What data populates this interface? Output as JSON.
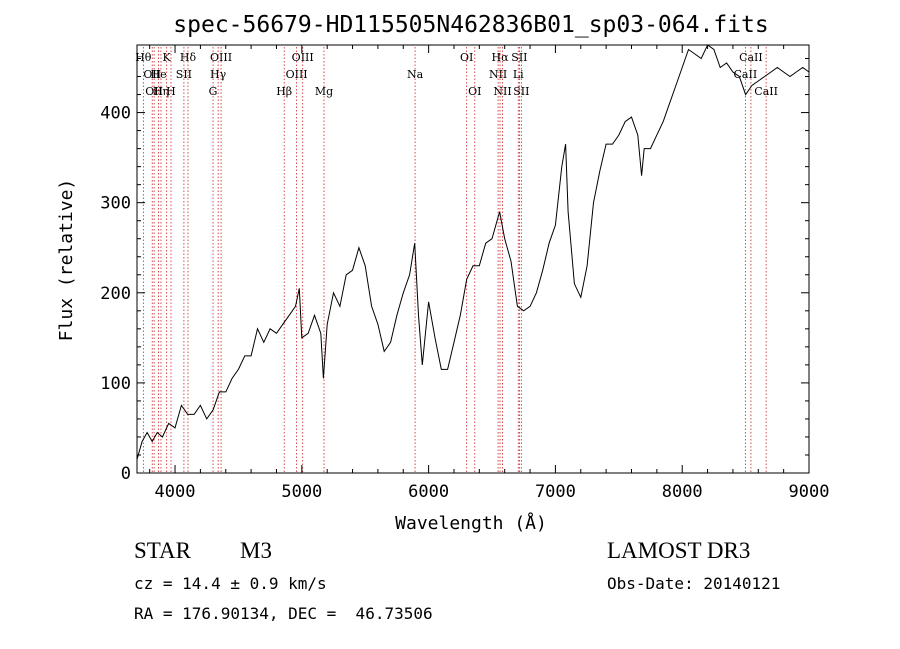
{
  "chart_data": {
    "type": "line",
    "title": "spec-56679-HD115505N462836B01_sp03-064.fits",
    "xlabel": "Wavelength (Å)",
    "ylabel": "Flux (relative)",
    "xlim": [
      3700,
      9000
    ],
    "ylim": [
      0,
      475
    ],
    "xticks": [
      4000,
      5000,
      6000,
      7000,
      8000,
      9000
    ],
    "yticks": [
      0,
      100,
      200,
      300,
      400
    ],
    "grid": false,
    "legend": "none",
    "line_color": "#000000",
    "marker_color": "#cc2222",
    "series": [
      {
        "x": [
          3700,
          3740,
          3780,
          3820,
          3860,
          3900,
          3950,
          4000,
          4050,
          4100,
          4150,
          4200,
          4250,
          4300,
          4350,
          4400,
          4450,
          4500,
          4550,
          4600,
          4650,
          4700,
          4750,
          4800,
          4850,
          4900,
          4950,
          4980,
          5000,
          5050,
          5100,
          5150,
          5170,
          5200,
          5250,
          5300,
          5350,
          5400,
          5450,
          5500,
          5550,
          5600,
          5650,
          5700,
          5750,
          5800,
          5850,
          5890,
          5920,
          5950,
          6000,
          6050,
          6100,
          6150,
          6200,
          6250,
          6300,
          6350,
          6400,
          6450,
          6500,
          6560,
          6600,
          6650,
          6700,
          6750,
          6800,
          6850,
          6900,
          6950,
          7000,
          7050,
          7080,
          7100,
          7150,
          7200,
          7250,
          7300,
          7350,
          7400,
          7450,
          7500,
          7550,
          7600,
          7650,
          7680,
          7700,
          7750,
          7800,
          7850,
          7900,
          7950,
          8000,
          8050,
          8100,
          8150,
          8200,
          8250,
          8300,
          8350,
          8400,
          8450,
          8500,
          8550,
          8600,
          8650,
          8700,
          8750,
          8800,
          8850,
          8900,
          8950,
          9000
        ],
        "y": [
          15,
          35,
          45,
          35,
          45,
          40,
          55,
          50,
          75,
          65,
          65,
          75,
          60,
          70,
          90,
          90,
          105,
          115,
          130,
          130,
          160,
          145,
          160,
          155,
          165,
          175,
          185,
          205,
          150,
          155,
          175,
          155,
          105,
          165,
          200,
          185,
          220,
          225,
          250,
          230,
          185,
          165,
          135,
          145,
          175,
          200,
          220,
          255,
          175,
          120,
          190,
          150,
          115,
          115,
          145,
          175,
          215,
          230,
          230,
          255,
          260,
          290,
          260,
          235,
          185,
          180,
          185,
          200,
          225,
          255,
          275,
          340,
          365,
          290,
          210,
          195,
          230,
          300,
          335,
          365,
          365,
          375,
          390,
          395,
          375,
          330,
          360,
          360,
          375,
          390,
          410,
          430,
          450,
          470,
          465,
          460,
          475,
          470,
          450,
          455,
          445,
          440,
          420,
          430,
          435,
          440,
          445,
          450,
          445,
          440,
          445,
          450,
          445
        ]
      }
    ],
    "line_markers": [
      {
        "x": 3750,
        "label": "Hθ",
        "row": 1
      },
      {
        "x": 3820,
        "label": "OII",
        "row": 2
      },
      {
        "x": 3835,
        "label": "OII",
        "row": 3
      },
      {
        "x": 3870,
        "label": "He",
        "row": 2
      },
      {
        "x": 3889,
        "label": "Hη",
        "row": 3
      },
      {
        "x": 3934,
        "label": "K",
        "row": 1
      },
      {
        "x": 3968,
        "label": "H",
        "row": 3
      },
      {
        "x": 4070,
        "label": "SII",
        "row": 2
      },
      {
        "x": 4102,
        "label": "Hδ",
        "row": 1
      },
      {
        "x": 4300,
        "label": "G",
        "row": 3
      },
      {
        "x": 4340,
        "label": "Hγ",
        "row": 2
      },
      {
        "x": 4363,
        "label": "OIII",
        "row": 1
      },
      {
        "x": 4861,
        "label": "Hβ",
        "row": 3
      },
      {
        "x": 4959,
        "label": "OIII",
        "row": 2
      },
      {
        "x": 5007,
        "label": "OIII",
        "row": 1
      },
      {
        "x": 5175,
        "label": "Mg",
        "row": 3
      },
      {
        "x": 5893,
        "label": "Na",
        "row": 2
      },
      {
        "x": 6300,
        "label": "OI",
        "row": 1
      },
      {
        "x": 6364,
        "label": "OI",
        "row": 3
      },
      {
        "x": 6548,
        "label": "NII",
        "row": 2
      },
      {
        "x": 6563,
        "label": "Hα",
        "row": 1
      },
      {
        "x": 6583,
        "label": "NII",
        "row": 3
      },
      {
        "x": 6707,
        "label": "Li",
        "row": 2
      },
      {
        "x": 6716,
        "label": "SII",
        "row": 1
      },
      {
        "x": 6731,
        "label": "SII",
        "row": 3
      },
      {
        "x": 8498,
        "label": "CaII",
        "row": 2
      },
      {
        "x": 8542,
        "label": "CaII",
        "row": 1
      },
      {
        "x": 8662,
        "label": "CaII",
        "row": 3
      }
    ]
  },
  "info": {
    "object_type": "STAR",
    "subclass": "M3",
    "survey": "LAMOST DR3",
    "redshift": "cz = 14.4 ± 0.9 km/s",
    "obs_date": "Obs-Date: 20140121",
    "coords": "RA = 176.90134, DEC =  46.73506"
  }
}
